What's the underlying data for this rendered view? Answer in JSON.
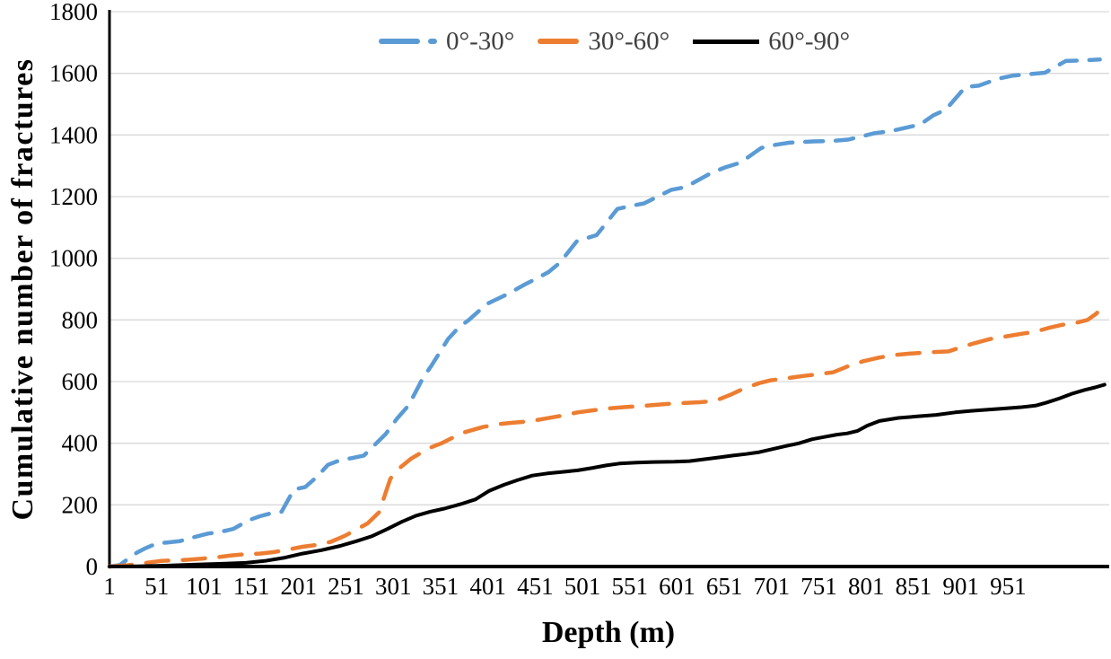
{
  "chart_data": {
    "type": "line",
    "title": "",
    "xlabel": "Depth (m)",
    "ylabel": "Cumulative number of fractures",
    "xlim": [
      1,
      1056
    ],
    "ylim": [
      0,
      1800
    ],
    "grid": "horizontal-only",
    "gridline_color": "#d9d9d9",
    "axis_color": "#000000",
    "legend_position": "top-center",
    "yticks": [
      0,
      200,
      400,
      600,
      800,
      1000,
      1200,
      1400,
      1600,
      1800
    ],
    "xticks": [
      1,
      51,
      101,
      151,
      201,
      251,
      301,
      351,
      401,
      451,
      501,
      551,
      601,
      651,
      701,
      751,
      801,
      851,
      901,
      951
    ],
    "series": [
      {
        "name": "0°-30°",
        "color": "#5B9BD5",
        "style": "dashed",
        "width": 4.5,
        "points": [
          [
            1,
            0
          ],
          [
            12,
            5
          ],
          [
            22,
            28
          ],
          [
            30,
            45
          ],
          [
            38,
            58
          ],
          [
            51,
            75
          ],
          [
            62,
            78
          ],
          [
            75,
            82
          ],
          [
            90,
            95
          ],
          [
            105,
            107
          ],
          [
            118,
            112
          ],
          [
            132,
            122
          ],
          [
            148,
            150
          ],
          [
            160,
            163
          ],
          [
            172,
            173
          ],
          [
            183,
            178
          ],
          [
            196,
            250
          ],
          [
            208,
            258
          ],
          [
            220,
            290
          ],
          [
            232,
            330
          ],
          [
            245,
            345
          ],
          [
            258,
            352
          ],
          [
            270,
            360
          ],
          [
            293,
            430
          ],
          [
            305,
            480
          ],
          [
            317,
            522
          ],
          [
            333,
            615
          ],
          [
            341,
            650
          ],
          [
            359,
            738
          ],
          [
            370,
            775
          ],
          [
            381,
            800
          ],
          [
            400,
            852
          ],
          [
            409,
            865
          ],
          [
            422,
            884
          ],
          [
            440,
            915
          ],
          [
            453,
            935
          ],
          [
            465,
            955
          ],
          [
            477,
            985
          ],
          [
            495,
            1055
          ],
          [
            505,
            1065
          ],
          [
            516,
            1075
          ],
          [
            538,
            1160
          ],
          [
            552,
            1170
          ],
          [
            566,
            1178
          ],
          [
            595,
            1222
          ],
          [
            610,
            1231
          ],
          [
            638,
            1278
          ],
          [
            652,
            1295
          ],
          [
            668,
            1310
          ],
          [
            690,
            1358
          ],
          [
            705,
            1368
          ],
          [
            720,
            1375
          ],
          [
            745,
            1379
          ],
          [
            766,
            1381
          ],
          [
            782,
            1385
          ],
          [
            810,
            1406
          ],
          [
            826,
            1412
          ],
          [
            858,
            1434
          ],
          [
            872,
            1464
          ],
          [
            885,
            1482
          ],
          [
            906,
            1556
          ],
          [
            920,
            1560
          ],
          [
            940,
            1582
          ],
          [
            955,
            1592
          ],
          [
            975,
            1598
          ],
          [
            990,
            1602
          ],
          [
            1012,
            1640
          ],
          [
            1030,
            1642
          ],
          [
            1048,
            1645
          ]
        ]
      },
      {
        "name": "30°-60°",
        "color": "#ED7D31",
        "style": "dashed",
        "width": 4.5,
        "points": [
          [
            1,
            0
          ],
          [
            20,
            4
          ],
          [
            40,
            12
          ],
          [
            55,
            18
          ],
          [
            70,
            20
          ],
          [
            85,
            22
          ],
          [
            100,
            26
          ],
          [
            115,
            30
          ],
          [
            130,
            36
          ],
          [
            145,
            40
          ],
          [
            160,
            42
          ],
          [
            175,
            47
          ],
          [
            190,
            55
          ],
          [
            205,
            64
          ],
          [
            220,
            70
          ],
          [
            235,
            80
          ],
          [
            250,
            100
          ],
          [
            262,
            120
          ],
          [
            274,
            140
          ],
          [
            286,
            176
          ],
          [
            298,
            285
          ],
          [
            308,
            320
          ],
          [
            320,
            350
          ],
          [
            338,
            383
          ],
          [
            352,
            400
          ],
          [
            365,
            420
          ],
          [
            376,
            435
          ],
          [
            395,
            452
          ],
          [
            412,
            462
          ],
          [
            428,
            467
          ],
          [
            445,
            471
          ],
          [
            462,
            480
          ],
          [
            480,
            490
          ],
          [
            496,
            500
          ],
          [
            508,
            505
          ],
          [
            525,
            512
          ],
          [
            545,
            517
          ],
          [
            565,
            521
          ],
          [
            588,
            527
          ],
          [
            605,
            530
          ],
          [
            625,
            533
          ],
          [
            641,
            537
          ],
          [
            658,
            558
          ],
          [
            672,
            578
          ],
          [
            688,
            595
          ],
          [
            700,
            604
          ],
          [
            718,
            611
          ],
          [
            734,
            618
          ],
          [
            750,
            624
          ],
          [
            766,
            630
          ],
          [
            782,
            650
          ],
          [
            798,
            666
          ],
          [
            815,
            678
          ],
          [
            830,
            686
          ],
          [
            848,
            691
          ],
          [
            866,
            695
          ],
          [
            888,
            698
          ],
          [
            900,
            710
          ],
          [
            915,
            724
          ],
          [
            932,
            738
          ],
          [
            950,
            747
          ],
          [
            965,
            755
          ],
          [
            980,
            762
          ],
          [
            995,
            775
          ],
          [
            1008,
            784
          ],
          [
            1022,
            790
          ],
          [
            1035,
            800
          ],
          [
            1044,
            820
          ],
          [
            1052,
            845
          ]
        ]
      },
      {
        "name": "60°-90°",
        "color": "#000000",
        "style": "solid",
        "width": 4,
        "points": [
          [
            1,
            0
          ],
          [
            30,
            1
          ],
          [
            60,
            3
          ],
          [
            90,
            6
          ],
          [
            120,
            9
          ],
          [
            145,
            12
          ],
          [
            165,
            18
          ],
          [
            185,
            28
          ],
          [
            205,
            42
          ],
          [
            225,
            53
          ],
          [
            245,
            67
          ],
          [
            262,
            82
          ],
          [
            278,
            98
          ],
          [
            295,
            122
          ],
          [
            310,
            145
          ],
          [
            325,
            165
          ],
          [
            340,
            178
          ],
          [
            355,
            188
          ],
          [
            372,
            202
          ],
          [
            388,
            218
          ],
          [
            402,
            245
          ],
          [
            418,
            265
          ],
          [
            432,
            280
          ],
          [
            448,
            295
          ],
          [
            464,
            302
          ],
          [
            480,
            307
          ],
          [
            496,
            312
          ],
          [
            512,
            320
          ],
          [
            526,
            328
          ],
          [
            540,
            334
          ],
          [
            558,
            337
          ],
          [
            576,
            339
          ],
          [
            598,
            340
          ],
          [
            614,
            342
          ],
          [
            630,
            348
          ],
          [
            645,
            354
          ],
          [
            660,
            360
          ],
          [
            674,
            365
          ],
          [
            688,
            371
          ],
          [
            702,
            381
          ],
          [
            716,
            391
          ],
          [
            730,
            400
          ],
          [
            744,
            413
          ],
          [
            756,
            420
          ],
          [
            770,
            428
          ],
          [
            781,
            432
          ],
          [
            792,
            440
          ],
          [
            802,
            457
          ],
          [
            815,
            472
          ],
          [
            835,
            482
          ],
          [
            855,
            487
          ],
          [
            875,
            492
          ],
          [
            895,
            500
          ],
          [
            912,
            505
          ],
          [
            930,
            509
          ],
          [
            948,
            513
          ],
          [
            965,
            517
          ],
          [
            980,
            522
          ],
          [
            992,
            532
          ],
          [
            1005,
            545
          ],
          [
            1018,
            560
          ],
          [
            1032,
            573
          ],
          [
            1043,
            581
          ],
          [
            1053,
            590
          ]
        ]
      }
    ]
  }
}
